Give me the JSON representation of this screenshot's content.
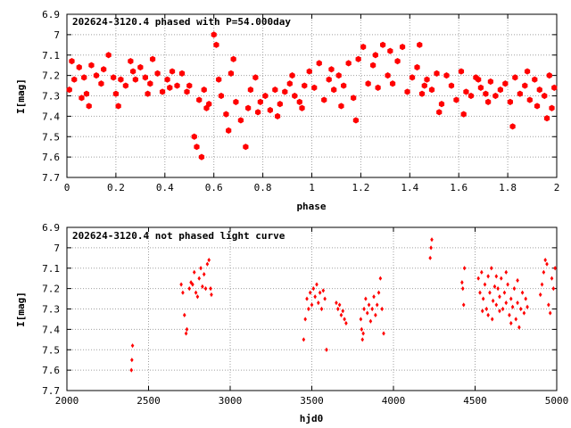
{
  "chart_data": [
    {
      "type": "scatter",
      "title": "202624-3120.4 phased with P=54.000day",
      "xlabel": "phase",
      "ylabel": "I[mag]",
      "xlim": [
        0,
        2
      ],
      "ylim": [
        6.9,
        7.7
      ],
      "y_inverted": true,
      "grid": true,
      "marker": "filled hexagon",
      "marker_color": "#ff0000",
      "x_ticks": [
        "0",
        "0.2",
        "0.4",
        "0.6",
        "0.8",
        "1",
        "1.2",
        "1.4",
        "1.6",
        "1.8",
        "2"
      ],
      "y_ticks": [
        "6.9",
        "7",
        "7.1",
        "7.2",
        "7.3",
        "7.4",
        "7.5",
        "7.6",
        "7.7"
      ],
      "x_tick_values": [
        0,
        0.2,
        0.4,
        0.6,
        0.8,
        1,
        1.2,
        1.4,
        1.6,
        1.8,
        2
      ],
      "y_tick_values": [
        6.9,
        7.0,
        7.1,
        7.2,
        7.3,
        7.4,
        7.5,
        7.6,
        7.7
      ],
      "points": [
        [
          0.02,
          7.13
        ],
        [
          0.03,
          7.22
        ],
        [
          0.05,
          7.16
        ],
        [
          0.07,
          7.21
        ],
        [
          0.08,
          7.29
        ],
        [
          0.1,
          7.15
        ],
        [
          0.12,
          7.2
        ],
        [
          0.14,
          7.24
        ],
        [
          0.15,
          7.17
        ],
        [
          0.17,
          7.1
        ],
        [
          0.19,
          7.21
        ],
        [
          0.2,
          7.29
        ],
        [
          0.22,
          7.22
        ],
        [
          0.24,
          7.25
        ],
        [
          0.26,
          7.13
        ],
        [
          0.28,
          7.22
        ],
        [
          0.3,
          7.16
        ],
        [
          0.32,
          7.21
        ],
        [
          0.34,
          7.24
        ],
        [
          0.35,
          7.12
        ],
        [
          0.37,
          7.19
        ],
        [
          0.39,
          7.28
        ],
        [
          0.41,
          7.22
        ],
        [
          0.43,
          7.18
        ],
        [
          0.45,
          7.25
        ],
        [
          0.47,
          7.19
        ],
        [
          0.5,
          7.25
        ],
        [
          0.52,
          7.5
        ],
        [
          0.53,
          7.55
        ],
        [
          0.55,
          7.6
        ],
        [
          0.56,
          7.27
        ],
        [
          0.58,
          7.34
        ],
        [
          0.6,
          7.0
        ],
        [
          0.62,
          7.22
        ],
        [
          0.63,
          7.3
        ],
        [
          0.65,
          7.39
        ],
        [
          0.67,
          7.19
        ],
        [
          0.69,
          7.33
        ],
        [
          0.71,
          7.42
        ],
        [
          0.73,
          7.55
        ],
        [
          0.75,
          7.27
        ],
        [
          0.77,
          7.21
        ],
        [
          0.79,
          7.33
        ],
        [
          0.81,
          7.3
        ],
        [
          0.83,
          7.37
        ],
        [
          0.85,
          7.27
        ],
        [
          0.87,
          7.34
        ],
        [
          0.89,
          7.28
        ],
        [
          0.91,
          7.24
        ],
        [
          0.93,
          7.3
        ],
        [
          0.95,
          7.33
        ],
        [
          0.97,
          7.25
        ],
        [
          0.99,
          7.18
        ],
        [
          1.01,
          7.26
        ],
        [
          1.03,
          7.14
        ],
        [
          1.05,
          7.32
        ],
        [
          1.07,
          7.22
        ],
        [
          1.09,
          7.27
        ],
        [
          1.11,
          7.2
        ],
        [
          1.13,
          7.25
        ],
        [
          1.15,
          7.14
        ],
        [
          1.17,
          7.31
        ],
        [
          1.19,
          7.12
        ],
        [
          1.21,
          7.06
        ],
        [
          1.23,
          7.24
        ],
        [
          1.25,
          7.15
        ],
        [
          1.27,
          7.26
        ],
        [
          1.29,
          7.05
        ],
        [
          1.31,
          7.2
        ],
        [
          1.33,
          7.24
        ],
        [
          1.35,
          7.13
        ],
        [
          1.37,
          7.06
        ],
        [
          1.39,
          7.28
        ],
        [
          1.41,
          7.21
        ],
        [
          1.43,
          7.16
        ],
        [
          1.45,
          7.29
        ],
        [
          1.47,
          7.22
        ],
        [
          1.49,
          7.27
        ],
        [
          1.51,
          7.19
        ],
        [
          1.53,
          7.34
        ],
        [
          1.55,
          7.2
        ],
        [
          1.57,
          7.25
        ],
        [
          1.59,
          7.32
        ],
        [
          1.61,
          7.18
        ],
        [
          1.63,
          7.28
        ],
        [
          1.65,
          7.3
        ],
        [
          1.67,
          7.21
        ],
        [
          1.69,
          7.26
        ],
        [
          1.71,
          7.29
        ],
        [
          1.73,
          7.23
        ],
        [
          1.75,
          7.3
        ],
        [
          1.77,
          7.27
        ],
        [
          1.79,
          7.24
        ],
        [
          1.81,
          7.33
        ],
        [
          1.83,
          7.21
        ],
        [
          1.85,
          7.29
        ],
        [
          1.87,
          7.25
        ],
        [
          1.89,
          7.32
        ],
        [
          1.91,
          7.22
        ],
        [
          1.93,
          7.27
        ],
        [
          1.95,
          7.3
        ],
        [
          1.97,
          7.2
        ],
        [
          1.99,
          7.26
        ],
        [
          0.01,
          7.27
        ],
        [
          0.09,
          7.35
        ],
        [
          0.21,
          7.35
        ],
        [
          0.33,
          7.29
        ],
        [
          0.49,
          7.28
        ],
        [
          0.54,
          7.32
        ],
        [
          0.57,
          7.36
        ],
        [
          0.66,
          7.47
        ],
        [
          0.74,
          7.36
        ],
        [
          0.78,
          7.38
        ],
        [
          0.86,
          7.4
        ],
        [
          0.96,
          7.36
        ],
        [
          1.12,
          7.35
        ],
        [
          1.18,
          7.42
        ],
        [
          1.32,
          7.08
        ],
        [
          1.44,
          7.05
        ],
        [
          1.52,
          7.38
        ],
        [
          1.62,
          7.39
        ],
        [
          1.72,
          7.33
        ],
        [
          1.82,
          7.45
        ],
        [
          1.92,
          7.35
        ],
        [
          1.96,
          7.41
        ],
        [
          1.98,
          7.36
        ],
        [
          0.06,
          7.31
        ],
        [
          0.27,
          7.18
        ],
        [
          0.42,
          7.26
        ],
        [
          0.61,
          7.05
        ],
        [
          0.68,
          7.12
        ],
        [
          0.92,
          7.2
        ],
        [
          1.08,
          7.17
        ],
        [
          1.26,
          7.1
        ],
        [
          1.46,
          7.25
        ],
        [
          1.68,
          7.22
        ],
        [
          1.88,
          7.18
        ]
      ]
    },
    {
      "type": "scatter",
      "title": "202624-3120.4 not phased light curve",
      "xlabel": "hjd0",
      "ylabel": "I[mag]",
      "xlim": [
        2000,
        5000
      ],
      "ylim": [
        6.9,
        7.7
      ],
      "y_inverted": true,
      "grid": true,
      "marker": "small diamond",
      "marker_color": "#ff0000",
      "x_ticks": [
        "2000",
        "2500",
        "3000",
        "3500",
        "4000",
        "4500",
        "5000"
      ],
      "y_ticks": [
        "6.9",
        "7",
        "7.1",
        "7.2",
        "7.3",
        "7.4",
        "7.5",
        "7.6",
        "7.7"
      ],
      "x_tick_values": [
        2000,
        2500,
        3000,
        3500,
        4000,
        4500,
        5000
      ],
      "y_tick_values": [
        6.9,
        7.0,
        7.1,
        7.2,
        7.3,
        7.4,
        7.5,
        7.6,
        7.7
      ],
      "points": [
        [
          2395,
          7.6
        ],
        [
          2398,
          7.55
        ],
        [
          2402,
          7.48
        ],
        [
          2700,
          7.18
        ],
        [
          2710,
          7.22
        ],
        [
          2720,
          7.33
        ],
        [
          2730,
          7.42
        ],
        [
          2735,
          7.4
        ],
        [
          2750,
          7.2
        ],
        [
          2760,
          7.17
        ],
        [
          2770,
          7.18
        ],
        [
          2780,
          7.12
        ],
        [
          2790,
          7.22
        ],
        [
          2800,
          7.24
        ],
        [
          2810,
          7.15
        ],
        [
          2820,
          7.1
        ],
        [
          2830,
          7.19
        ],
        [
          2840,
          7.13
        ],
        [
          2850,
          7.2
        ],
        [
          2860,
          7.08
        ],
        [
          2870,
          7.06
        ],
        [
          2880,
          7.2
        ],
        [
          2885,
          7.23
        ],
        [
          3450,
          7.45
        ],
        [
          3460,
          7.35
        ],
        [
          3470,
          7.25
        ],
        [
          3480,
          7.3
        ],
        [
          3490,
          7.22
        ],
        [
          3500,
          7.28
        ],
        [
          3510,
          7.2
        ],
        [
          3520,
          7.24
        ],
        [
          3530,
          7.18
        ],
        [
          3540,
          7.27
        ],
        [
          3550,
          7.22
        ],
        [
          3560,
          7.3
        ],
        [
          3570,
          7.21
        ],
        [
          3580,
          7.25
        ],
        [
          3590,
          7.5
        ],
        [
          3650,
          7.27
        ],
        [
          3660,
          7.3
        ],
        [
          3670,
          7.28
        ],
        [
          3680,
          7.33
        ],
        [
          3690,
          7.31
        ],
        [
          3700,
          7.35
        ],
        [
          3710,
          7.37
        ],
        [
          3800,
          7.35
        ],
        [
          3805,
          7.4
        ],
        [
          3810,
          7.45
        ],
        [
          3815,
          7.42
        ],
        [
          3820,
          7.3
        ],
        [
          3830,
          7.25
        ],
        [
          3840,
          7.32
        ],
        [
          3850,
          7.28
        ],
        [
          3860,
          7.36
        ],
        [
          3870,
          7.3
        ],
        [
          3880,
          7.24
        ],
        [
          3890,
          7.33
        ],
        [
          3900,
          7.28
        ],
        [
          3910,
          7.22
        ],
        [
          3920,
          7.15
        ],
        [
          3930,
          7.3
        ],
        [
          3940,
          7.42
        ],
        [
          4225,
          7.05
        ],
        [
          4230,
          7.0
        ],
        [
          4235,
          6.96
        ],
        [
          4420,
          7.17
        ],
        [
          4425,
          7.2
        ],
        [
          4430,
          7.28
        ],
        [
          4435,
          7.1
        ],
        [
          4520,
          7.15
        ],
        [
          4530,
          7.22
        ],
        [
          4540,
          7.12
        ],
        [
          4550,
          7.25
        ],
        [
          4560,
          7.18
        ],
        [
          4570,
          7.3
        ],
        [
          4580,
          7.14
        ],
        [
          4590,
          7.22
        ],
        [
          4600,
          7.1
        ],
        [
          4610,
          7.26
        ],
        [
          4620,
          7.19
        ],
        [
          4630,
          7.28
        ],
        [
          4640,
          7.2
        ],
        [
          4650,
          7.24
        ],
        [
          4660,
          7.15
        ],
        [
          4670,
          7.3
        ],
        [
          4680,
          7.22
        ],
        [
          4690,
          7.27
        ],
        [
          4700,
          7.18
        ],
        [
          4710,
          7.33
        ],
        [
          4720,
          7.25
        ],
        [
          4730,
          7.29
        ],
        [
          4740,
          7.2
        ],
        [
          4750,
          7.35
        ],
        [
          4760,
          7.27
        ],
        [
          4770,
          7.39
        ],
        [
          4780,
          7.3
        ],
        [
          4790,
          7.22
        ],
        [
          4800,
          7.32
        ],
        [
          4810,
          7.25
        ],
        [
          4820,
          7.29
        ],
        [
          4900,
          7.23
        ],
        [
          4910,
          7.18
        ],
        [
          4920,
          7.12
        ],
        [
          4930,
          7.06
        ],
        [
          4940,
          7.08
        ],
        [
          4950,
          7.28
        ],
        [
          4960,
          7.32
        ],
        [
          4970,
          7.15
        ],
        [
          4980,
          7.2
        ],
        [
          4990,
          7.1
        ],
        [
          4580,
          7.33
        ],
        [
          4650,
          7.31
        ],
        [
          4720,
          7.37
        ],
        [
          4605,
          7.35
        ],
        [
          4545,
          7.31
        ],
        [
          4690,
          7.12
        ],
        [
          4630,
          7.14
        ],
        [
          4760,
          7.16
        ]
      ]
    }
  ]
}
